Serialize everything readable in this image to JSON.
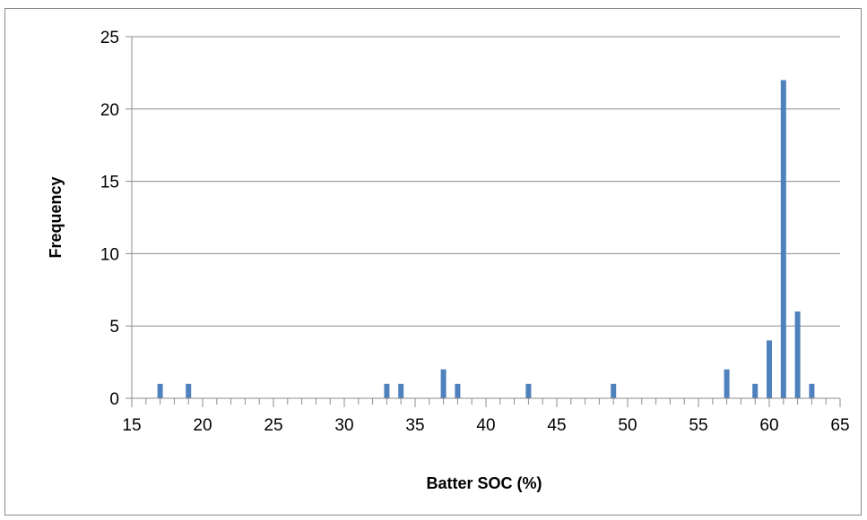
{
  "chart_data": {
    "type": "bar",
    "title": "",
    "xlabel": "Batter SOC (%)",
    "ylabel": "Frequency",
    "xlim": [
      15,
      65
    ],
    "ylim": [
      0,
      25
    ],
    "x_ticks": [
      15,
      20,
      25,
      30,
      35,
      40,
      45,
      50,
      55,
      60,
      65
    ],
    "y_ticks": [
      0,
      5,
      10,
      15,
      20,
      25
    ],
    "grid": "horizontal",
    "legend": "none",
    "bar_color": "#4f81bd",
    "points": [
      {
        "x": 17,
        "y": 1
      },
      {
        "x": 19,
        "y": 1
      },
      {
        "x": 33,
        "y": 1
      },
      {
        "x": 34,
        "y": 1
      },
      {
        "x": 37,
        "y": 2
      },
      {
        "x": 38,
        "y": 1
      },
      {
        "x": 43,
        "y": 1
      },
      {
        "x": 49,
        "y": 1
      },
      {
        "x": 57,
        "y": 2
      },
      {
        "x": 59,
        "y": 1
      },
      {
        "x": 60,
        "y": 4
      },
      {
        "x": 61,
        "y": 22
      },
      {
        "x": 62,
        "y": 6
      },
      {
        "x": 63,
        "y": 1
      }
    ]
  }
}
